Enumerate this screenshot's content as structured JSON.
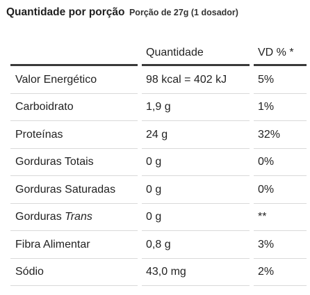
{
  "header": {
    "title": "Quantidade por porção",
    "portion": "Porção de 27g (1 dosador)"
  },
  "table": {
    "columns": [
      "",
      "Quantidade",
      "VD % *"
    ],
    "rows": [
      {
        "name": "Valor Energético",
        "name_suffix": "",
        "amount": "98 kcal = 402 kJ",
        "dv": "5%"
      },
      {
        "name": "Carboidrato",
        "name_suffix": "",
        "amount": "1,9 g",
        "dv": "1%"
      },
      {
        "name": "Proteínas",
        "name_suffix": "",
        "amount": "24 g",
        "dv": "32%"
      },
      {
        "name": "Gorduras Totais",
        "name_suffix": "",
        "amount": "0 g",
        "dv": "0%"
      },
      {
        "name": "Gorduras Saturadas",
        "name_suffix": "",
        "amount": "0 g",
        "dv": "0%"
      },
      {
        "name": "Gorduras ",
        "name_suffix": "Trans",
        "amount": "0 g",
        "dv": "**"
      },
      {
        "name": "Fibra Alimentar",
        "name_suffix": "",
        "amount": "0,8 g",
        "dv": "3%"
      },
      {
        "name": "Sódio",
        "name_suffix": "",
        "amount": "43,0 mg",
        "dv": "2%"
      }
    ]
  }
}
